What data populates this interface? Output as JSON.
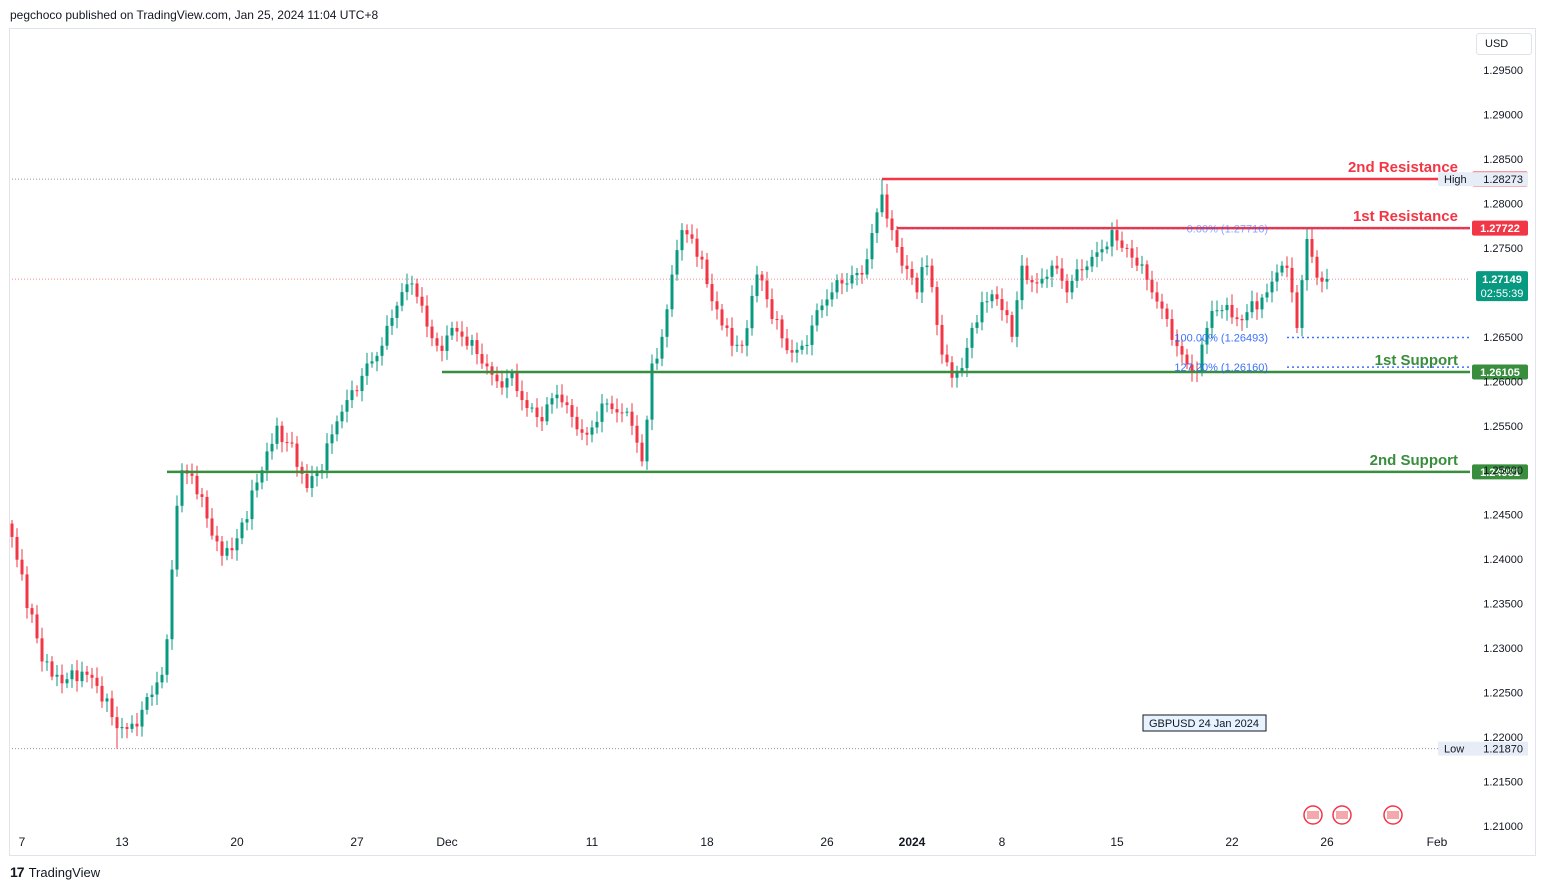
{
  "header": {
    "text": "pegchoco published on TradingView.com, Jan 25, 2024 11:04 UTC+8"
  },
  "footer": {
    "brand": "TradingView",
    "logo": "17"
  },
  "currency": "USD",
  "colors": {
    "up": "#089981",
    "down": "#f23645",
    "resistance": "#f23645",
    "support": "#388e3c",
    "fib": "#2962ff"
  },
  "chart_data": {
    "type": "candlestick",
    "symbol_note": "GBPUSD 24 Jan 2024",
    "y_ticks": [
      "1.29500",
      "1.29000",
      "1.28500",
      "1.28000",
      "1.27500",
      "1.27000",
      "1.26500",
      "1.26000",
      "1.25500",
      "1.25000",
      "1.24500",
      "1.24000",
      "1.23500",
      "1.23000",
      "1.22500",
      "1.22000",
      "1.21500",
      "1.21000"
    ],
    "x_ticks": [
      "7",
      "13",
      "20",
      "27",
      "Dec",
      "11",
      "18",
      "26",
      "2024",
      "8",
      "15",
      "22",
      "26",
      "Feb"
    ],
    "ylim": [
      1.2095,
      1.2975
    ],
    "levels": [
      {
        "label": "2nd Resistance",
        "value": 1.28274,
        "price": "1.28274",
        "kind": "resistance"
      },
      {
        "label": "1st Resistance",
        "value": 1.27722,
        "price": "1.27722",
        "kind": "resistance"
      },
      {
        "label": "1st Support",
        "value": 1.26105,
        "price": "1.26105",
        "kind": "support"
      },
      {
        "label": "2nd Support",
        "value": 1.24981,
        "price": "1.24981",
        "kind": "support"
      }
    ],
    "fib": [
      {
        "label": "0.00% (1.27716)",
        "value": 1.27716
      },
      {
        "label": "100.00% (1.26493)",
        "value": 1.26493
      },
      {
        "label": "127.20% (1.26160)",
        "value": 1.2616
      }
    ],
    "high": {
      "label": "High",
      "value": 1.28273,
      "price": "1.28273"
    },
    "low": {
      "label": "Low",
      "value": 1.2187,
      "price": "1.21870"
    },
    "current": {
      "value": 1.27149,
      "price": "1.27149",
      "countdown": "02:55:39"
    },
    "keypoints": [
      [
        0,
        1.2425
      ],
      [
        3,
        1.2345
      ],
      [
        6,
        1.2285
      ],
      [
        9,
        1.227
      ],
      [
        12,
        1.2275
      ],
      [
        15,
        1.227
      ],
      [
        18,
        1.224
      ],
      [
        21,
        1.221
      ],
      [
        24,
        1.2215
      ],
      [
        27,
        1.2245
      ],
      [
        30,
        1.227
      ],
      [
        31,
        1.231
      ],
      [
        33,
        1.246
      ],
      [
        34,
        1.25
      ],
      [
        38,
        1.247
      ],
      [
        41,
        1.242
      ],
      [
        44,
        1.241
      ],
      [
        47,
        1.2445
      ],
      [
        50,
        1.25
      ],
      [
        53,
        1.255
      ],
      [
        56,
        1.253
      ],
      [
        59,
        1.248
      ],
      [
        62,
        1.25
      ],
      [
        65,
        1.2555
      ],
      [
        68,
        1.259
      ],
      [
        71,
        1.262
      ],
      [
        74,
        1.264
      ],
      [
        77,
        1.2685
      ],
      [
        80,
        1.271
      ],
      [
        82,
        1.2685
      ],
      [
        85,
        1.264
      ],
      [
        88,
        1.266
      ],
      [
        91,
        1.264
      ],
      [
        94,
        1.262
      ],
      [
        97,
        1.26
      ],
      [
        100,
        1.261
      ],
      [
        103,
        1.257
      ],
      [
        106,
        1.2555
      ],
      [
        109,
        1.2585
      ],
      [
        112,
        1.256
      ],
      [
        115,
        1.254
      ],
      [
        118,
        1.2575
      ],
      [
        121,
        1.2565
      ],
      [
        124,
        1.255
      ],
      [
        126,
        1.251
      ],
      [
        128,
        1.262
      ],
      [
        130,
        1.265
      ],
      [
        132,
        1.272
      ],
      [
        134,
        1.277
      ],
      [
        137,
        1.274
      ],
      [
        140,
        1.269
      ],
      [
        143,
        1.266
      ],
      [
        146,
        1.264
      ],
      [
        149,
        1.272
      ],
      [
        152,
        1.267
      ],
      [
        155,
        1.2635
      ],
      [
        158,
        1.264
      ],
      [
        161,
        1.268
      ],
      [
        164,
        1.27
      ],
      [
        167,
        1.271
      ],
      [
        170,
        1.272
      ],
      [
        173,
        1.279
      ],
      [
        174,
        1.281
      ],
      [
        176,
        1.277
      ],
      [
        178,
        1.273
      ],
      [
        181,
        1.27
      ],
      [
        183,
        1.273
      ],
      [
        186,
        1.263
      ],
      [
        189,
        1.261
      ],
      [
        192,
        1.266
      ],
      [
        195,
        1.269
      ],
      [
        198,
        1.268
      ],
      [
        200,
        1.265
      ],
      [
        202,
        1.273
      ],
      [
        205,
        1.271
      ],
      [
        208,
        1.273
      ],
      [
        211,
        1.27
      ],
      [
        214,
        1.2725
      ],
      [
        217,
        1.2745
      ],
      [
        220,
        1.277
      ],
      [
        222,
        1.275
      ],
      [
        225,
        1.273
      ],
      [
        228,
        1.27
      ],
      [
        231,
        1.267
      ],
      [
        234,
        1.263
      ],
      [
        237,
        1.261
      ],
      [
        239,
        1.266
      ],
      [
        242,
        1.268
      ],
      [
        245,
        1.267
      ],
      [
        248,
        1.269
      ],
      [
        251,
        1.27
      ],
      [
        254,
        1.273
      ],
      [
        256,
        1.27
      ],
      [
        257,
        1.266
      ],
      [
        259,
        1.276
      ],
      [
        260,
        1.274
      ],
      [
        262,
        1.2712
      ],
      [
        263,
        1.2715
      ]
    ]
  }
}
